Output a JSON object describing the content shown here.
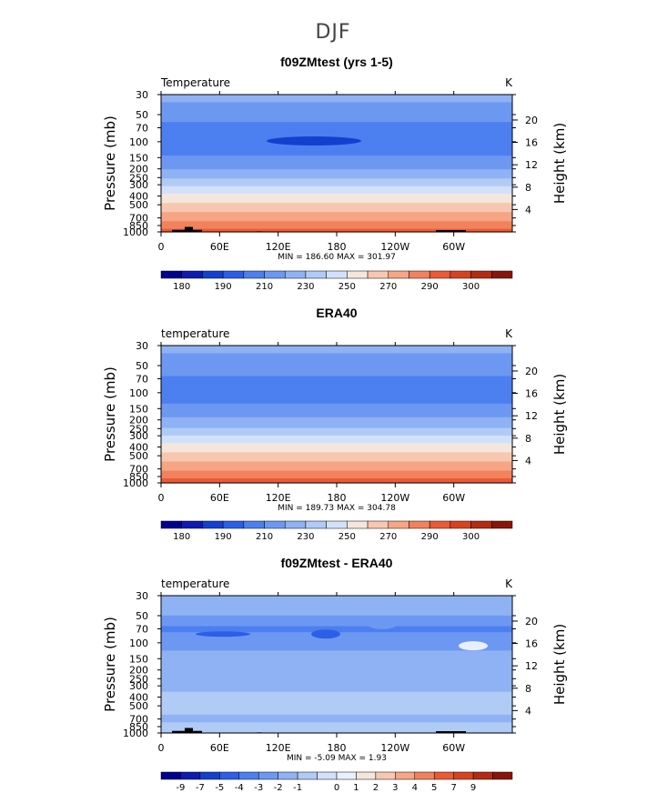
{
  "figure": {
    "title": "DJF"
  },
  "colors": {
    "temp": [
      "#00008f",
      "#0c1bb0",
      "#1440d0",
      "#2c5ee8",
      "#4c7ff0",
      "#6d98f2",
      "#8fb2f4",
      "#b0cbf6",
      "#d2e1fb",
      "#f5e6dc",
      "#f8c7b0",
      "#f6a585",
      "#f1825d",
      "#eb5a35",
      "#d8431f",
      "#b52a12",
      "#8a1408"
    ],
    "diff": [
      "#00008f",
      "#0c1bb0",
      "#1440d0",
      "#2c5ee8",
      "#4c7ff0",
      "#6d98f2",
      "#8fb2f4",
      "#b0cbf6",
      "#d2e1fb",
      "#e8f0fb",
      "#f5e6dc",
      "#f8c7b0",
      "#f6a585",
      "#f1825d",
      "#eb5a35",
      "#d8431f",
      "#b52a12",
      "#8a1408"
    ]
  },
  "chart_data": [
    {
      "type": "heatmap",
      "title": "f09ZMtest (yrs 1-5)",
      "variable": "Temperature",
      "units": "K",
      "ylabel": "Pressure (mb)",
      "ylabel_right": "Height (km)",
      "x_ticks": [
        "0",
        "60E",
        "120E",
        "180",
        "120W",
        "60W"
      ],
      "x_range": [
        0,
        360
      ],
      "p_ticks": [
        30,
        50,
        70,
        100,
        150,
        200,
        250,
        300,
        400,
        500,
        700,
        850,
        1000
      ],
      "ylim": [
        30,
        1000
      ],
      "h_ticks": [
        20,
        16,
        12,
        8,
        4
      ],
      "stats": "MIN = 186.60  MAX = 301.97",
      "min": 186.6,
      "max": 301.97,
      "colorbar_labels": [
        "180",
        "190",
        "210",
        "230",
        "250",
        "270",
        "290",
        "300"
      ],
      "profile": [
        {
          "p": 30,
          "v": 222
        },
        {
          "p": 50,
          "v": 217
        },
        {
          "p": 70,
          "v": 205
        },
        {
          "p": 100,
          "v": 201
        },
        {
          "p": 150,
          "v": 211
        },
        {
          "p": 200,
          "v": 220
        },
        {
          "p": 250,
          "v": 228
        },
        {
          "p": 300,
          "v": 238
        },
        {
          "p": 400,
          "v": 252
        },
        {
          "p": 500,
          "v": 262
        },
        {
          "p": 700,
          "v": 276
        },
        {
          "p": 850,
          "v": 284
        },
        {
          "p": 1000,
          "v": 294
        }
      ]
    },
    {
      "type": "heatmap",
      "title": "ERA40",
      "variable": "temperature",
      "units": "K",
      "ylabel": "Pressure (mb)",
      "ylabel_right": "Height (km)",
      "x_ticks": [
        "0",
        "60E",
        "120E",
        "180",
        "120W",
        "60W"
      ],
      "x_range": [
        0,
        360
      ],
      "p_ticks": [
        30,
        50,
        70,
        100,
        150,
        200,
        250,
        300,
        400,
        500,
        700,
        850,
        1000
      ],
      "ylim": [
        30,
        1000
      ],
      "h_ticks": [
        20,
        16,
        12,
        8,
        4
      ],
      "stats": "MIN = 189.73  MAX = 304.78",
      "min": 189.73,
      "max": 304.78,
      "colorbar_labels": [
        "180",
        "190",
        "210",
        "230",
        "250",
        "270",
        "290",
        "300"
      ],
      "profile": [
        {
          "p": 30,
          "v": 222
        },
        {
          "p": 50,
          "v": 217
        },
        {
          "p": 70,
          "v": 208
        },
        {
          "p": 100,
          "v": 204
        },
        {
          "p": 150,
          "v": 213
        },
        {
          "p": 200,
          "v": 222
        },
        {
          "p": 250,
          "v": 230
        },
        {
          "p": 300,
          "v": 240
        },
        {
          "p": 400,
          "v": 254
        },
        {
          "p": 500,
          "v": 264
        },
        {
          "p": 700,
          "v": 278
        },
        {
          "p": 850,
          "v": 286
        },
        {
          "p": 1000,
          "v": 296
        }
      ]
    },
    {
      "type": "heatmap",
      "title": "f09ZMtest - ERA40",
      "variable": "temperature",
      "units": "K",
      "ylabel": "Pressure (mb)",
      "ylabel_right": "Height (km)",
      "x_ticks": [
        "0",
        "60E",
        "120E",
        "180",
        "120W",
        "60W"
      ],
      "x_range": [
        0,
        360
      ],
      "p_ticks": [
        30,
        50,
        70,
        100,
        150,
        200,
        250,
        300,
        400,
        500,
        700,
        850,
        1000
      ],
      "ylim": [
        30,
        1000
      ],
      "h_ticks": [
        20,
        16,
        12,
        8,
        4
      ],
      "stats": "MIN =  -5.09  MAX =   1.93",
      "min": -5.09,
      "max": 1.93,
      "colorbar_labels": [
        "-9",
        "-7",
        "-5",
        "-4",
        "-3",
        "-2",
        "-1",
        "0",
        "1",
        "2",
        "3",
        "4",
        "5",
        "7",
        "9"
      ],
      "profile": [
        {
          "p": 30,
          "v": -1.6
        },
        {
          "p": 50,
          "v": -2.0
        },
        {
          "p": 70,
          "v": -3.2
        },
        {
          "p": 100,
          "v": -2.3
        },
        {
          "p": 150,
          "v": -1.7
        },
        {
          "p": 200,
          "v": -1.6
        },
        {
          "p": 250,
          "v": -1.5
        },
        {
          "p": 300,
          "v": -1.3
        },
        {
          "p": 400,
          "v": -0.7
        },
        {
          "p": 500,
          "v": -0.6
        },
        {
          "p": 700,
          "v": -1.2
        },
        {
          "p": 850,
          "v": -0.8
        },
        {
          "p": 1000,
          "v": -0.6
        }
      ]
    }
  ]
}
